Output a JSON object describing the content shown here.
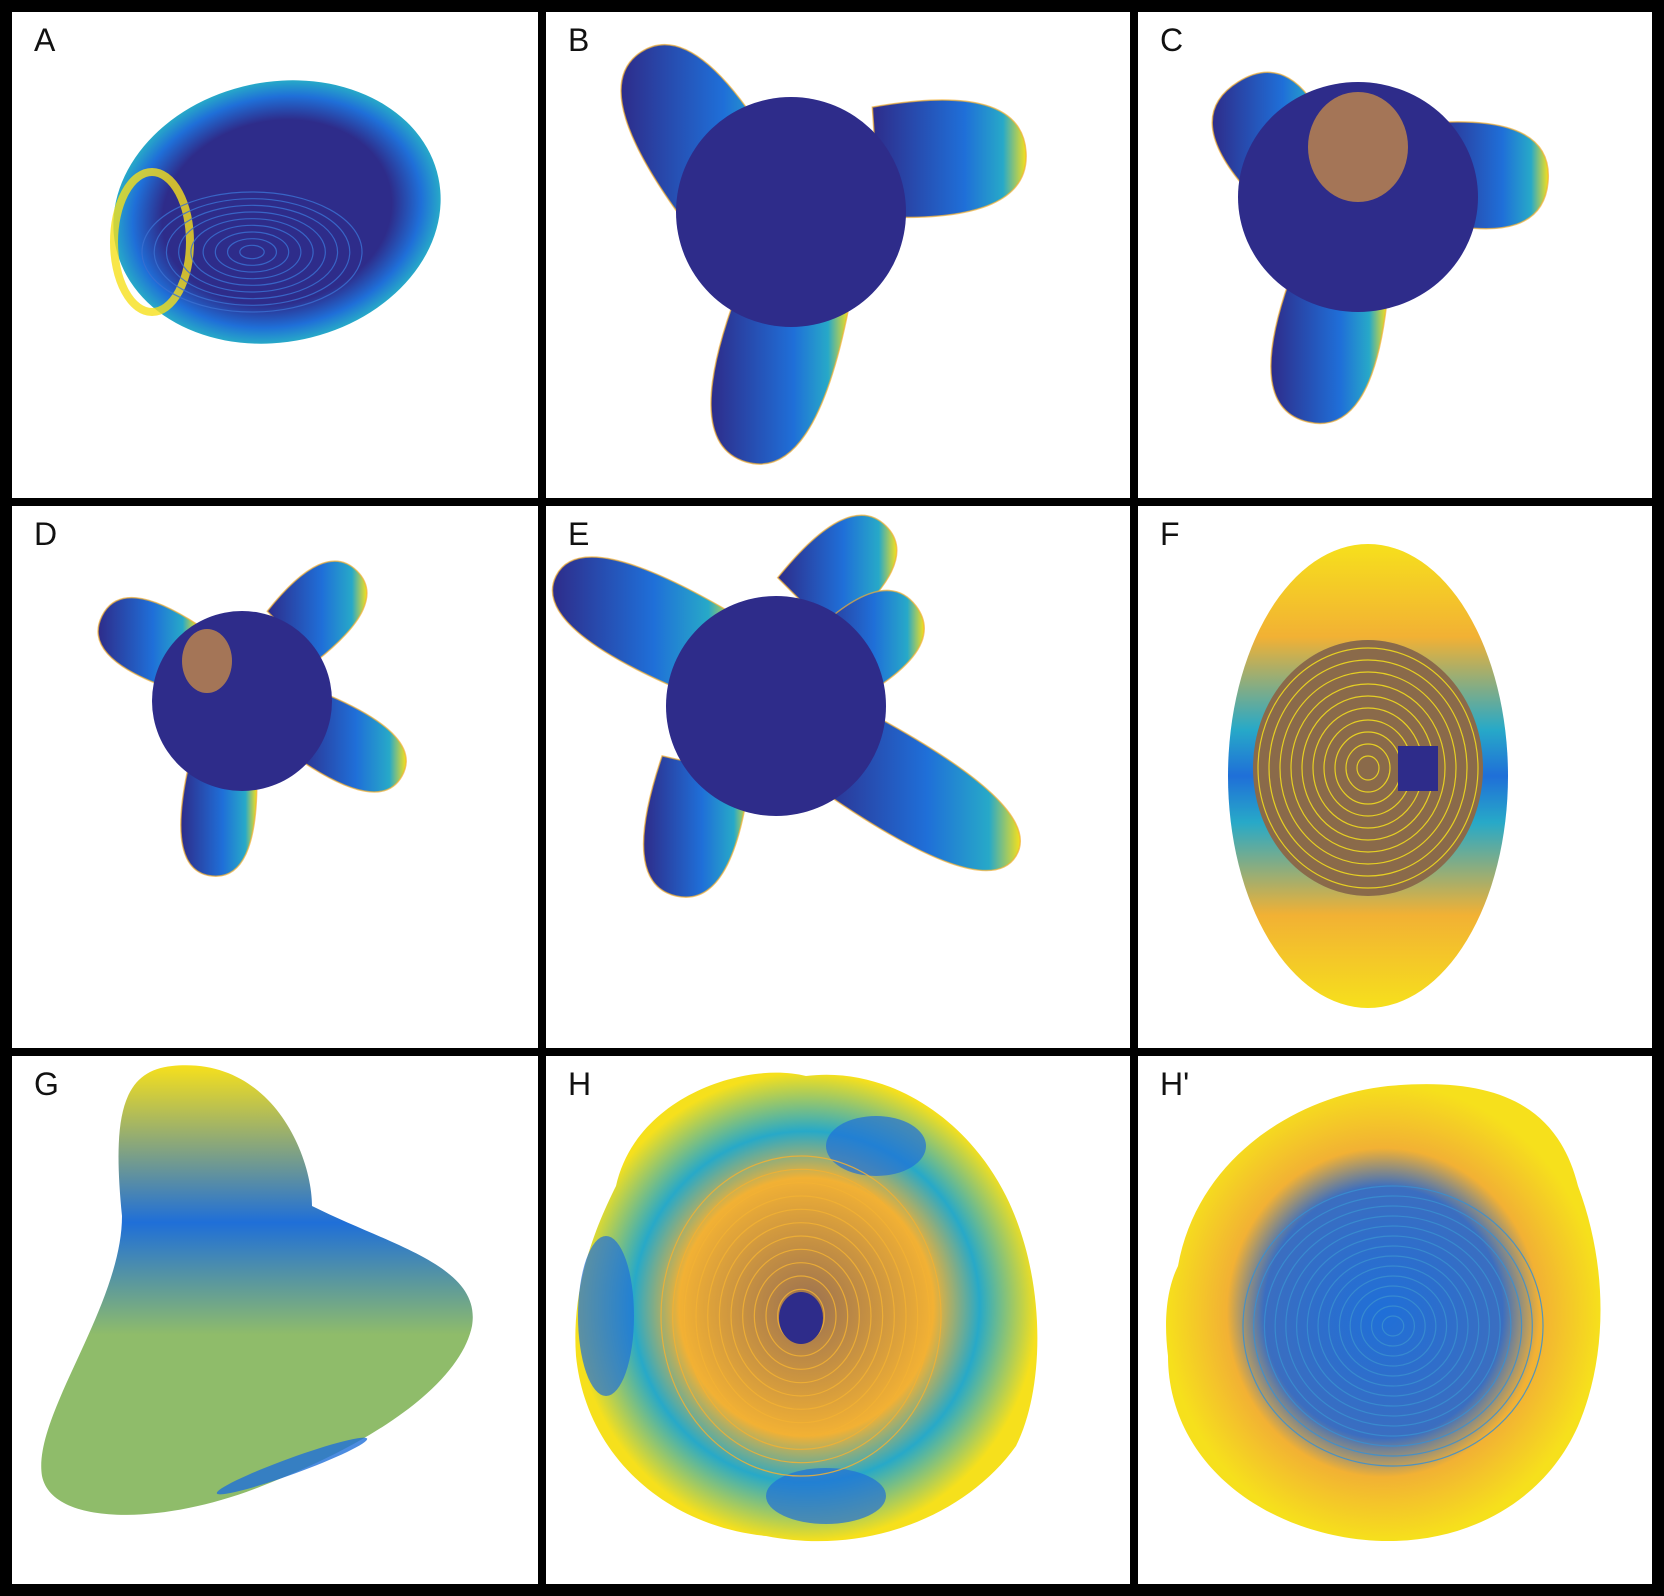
{
  "colors": {
    "frame": "#000000",
    "background": "#ffffff",
    "dark": "#2e2c8a",
    "mid": "#1f6fd8",
    "teal": "#27a9c8",
    "green": "#8fbc6a",
    "yellow": "#f6e01c",
    "orange": "#f2b134"
  },
  "panels": [
    {
      "label": "A",
      "shape": "ellipsoid-blob"
    },
    {
      "label": "B",
      "shape": "tripod-blob"
    },
    {
      "label": "C",
      "shape": "tripod-blob-with-cap"
    },
    {
      "label": "D",
      "shape": "four-arm-star"
    },
    {
      "label": "E",
      "shape": "five-arm-star"
    },
    {
      "label": "F",
      "shape": "vertical-ellipsoid"
    },
    {
      "label": "G",
      "shape": "smooth-triangular-blob"
    },
    {
      "label": "H",
      "shape": "rounded-polyhedron-front"
    },
    {
      "label": "H'",
      "shape": "rounded-polyhedron-back"
    }
  ]
}
